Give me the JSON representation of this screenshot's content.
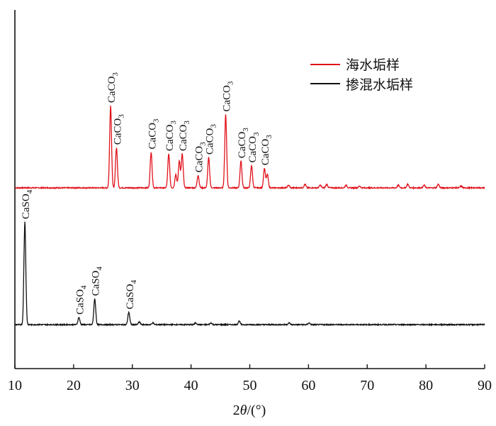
{
  "chart_data": {
    "type": "line",
    "xlabel": "2θ/(°)",
    "xlabel_parts": {
      "prefix": "2",
      "italic": "θ",
      "suffix": "/(°)"
    },
    "xlim": [
      10,
      90
    ],
    "x_ticks": [
      10,
      20,
      30,
      40,
      50,
      60,
      70,
      80,
      90
    ],
    "y_ticks_shown": false,
    "legend": {
      "position": "top-right"
    },
    "colors": {
      "seawater": "#e0121b",
      "mixed": "#111111"
    },
    "series": [
      {
        "name": "海水垢样",
        "color": "#e0121b",
        "baseline": 1.55,
        "peaks": [
          {
            "x": 26.3,
            "h": 0.92,
            "label": "CaCO3"
          },
          {
            "x": 27.3,
            "h": 0.45,
            "label": "CaCO3"
          },
          {
            "x": 33.2,
            "h": 0.4,
            "label": "CaCO3"
          },
          {
            "x": 36.2,
            "h": 0.38,
            "label": "CaCO3"
          },
          {
            "x": 37.4,
            "h": 0.15,
            "label": ""
          },
          {
            "x": 38.0,
            "h": 0.3,
            "label": ""
          },
          {
            "x": 38.5,
            "h": 0.38,
            "label": "CaCO3"
          },
          {
            "x": 41.2,
            "h": 0.14,
            "label": "CaCO3"
          },
          {
            "x": 43.0,
            "h": 0.34,
            "label": "CaCO3"
          },
          {
            "x": 45.9,
            "h": 0.82,
            "label": "CaCO3"
          },
          {
            "x": 48.5,
            "h": 0.3,
            "label": "CaCO3"
          },
          {
            "x": 50.3,
            "h": 0.25,
            "label": "CaCO3"
          },
          {
            "x": 52.5,
            "h": 0.22,
            "label": "CaCO3"
          },
          {
            "x": 53.0,
            "h": 0.15,
            "label": ""
          },
          {
            "x": 56.6,
            "h": 0.03,
            "label": ""
          },
          {
            "x": 59.4,
            "h": 0.04,
            "label": ""
          },
          {
            "x": 62.0,
            "h": 0.03,
            "label": ""
          },
          {
            "x": 63.1,
            "h": 0.04,
            "label": ""
          },
          {
            "x": 66.4,
            "h": 0.03,
            "label": ""
          },
          {
            "x": 68.7,
            "h": 0.02,
            "label": ""
          },
          {
            "x": 75.3,
            "h": 0.03,
            "label": ""
          },
          {
            "x": 76.9,
            "h": 0.04,
            "label": ""
          },
          {
            "x": 79.7,
            "h": 0.03,
            "label": ""
          },
          {
            "x": 82.1,
            "h": 0.04,
            "label": ""
          },
          {
            "x": 86.0,
            "h": 0.02,
            "label": ""
          }
        ]
      },
      {
        "name": "掺混水垢样",
        "color": "#111111",
        "baseline": 0.0,
        "peaks": [
          {
            "x": 11.7,
            "h": 1.15,
            "label": "CaSO4"
          },
          {
            "x": 20.9,
            "h": 0.08,
            "label": "CaSO4"
          },
          {
            "x": 23.6,
            "h": 0.29,
            "label": "CaSO4"
          },
          {
            "x": 29.4,
            "h": 0.14,
            "label": "CaSO4"
          },
          {
            "x": 31.2,
            "h": 0.03,
            "label": ""
          },
          {
            "x": 33.5,
            "h": 0.02,
            "label": ""
          },
          {
            "x": 40.8,
            "h": 0.02,
            "label": ""
          },
          {
            "x": 43.4,
            "h": 0.02,
            "label": ""
          },
          {
            "x": 48.2,
            "h": 0.04,
            "label": ""
          },
          {
            "x": 56.7,
            "h": 0.02,
            "label": ""
          },
          {
            "x": 60.1,
            "h": 0.02,
            "label": ""
          }
        ]
      }
    ]
  }
}
